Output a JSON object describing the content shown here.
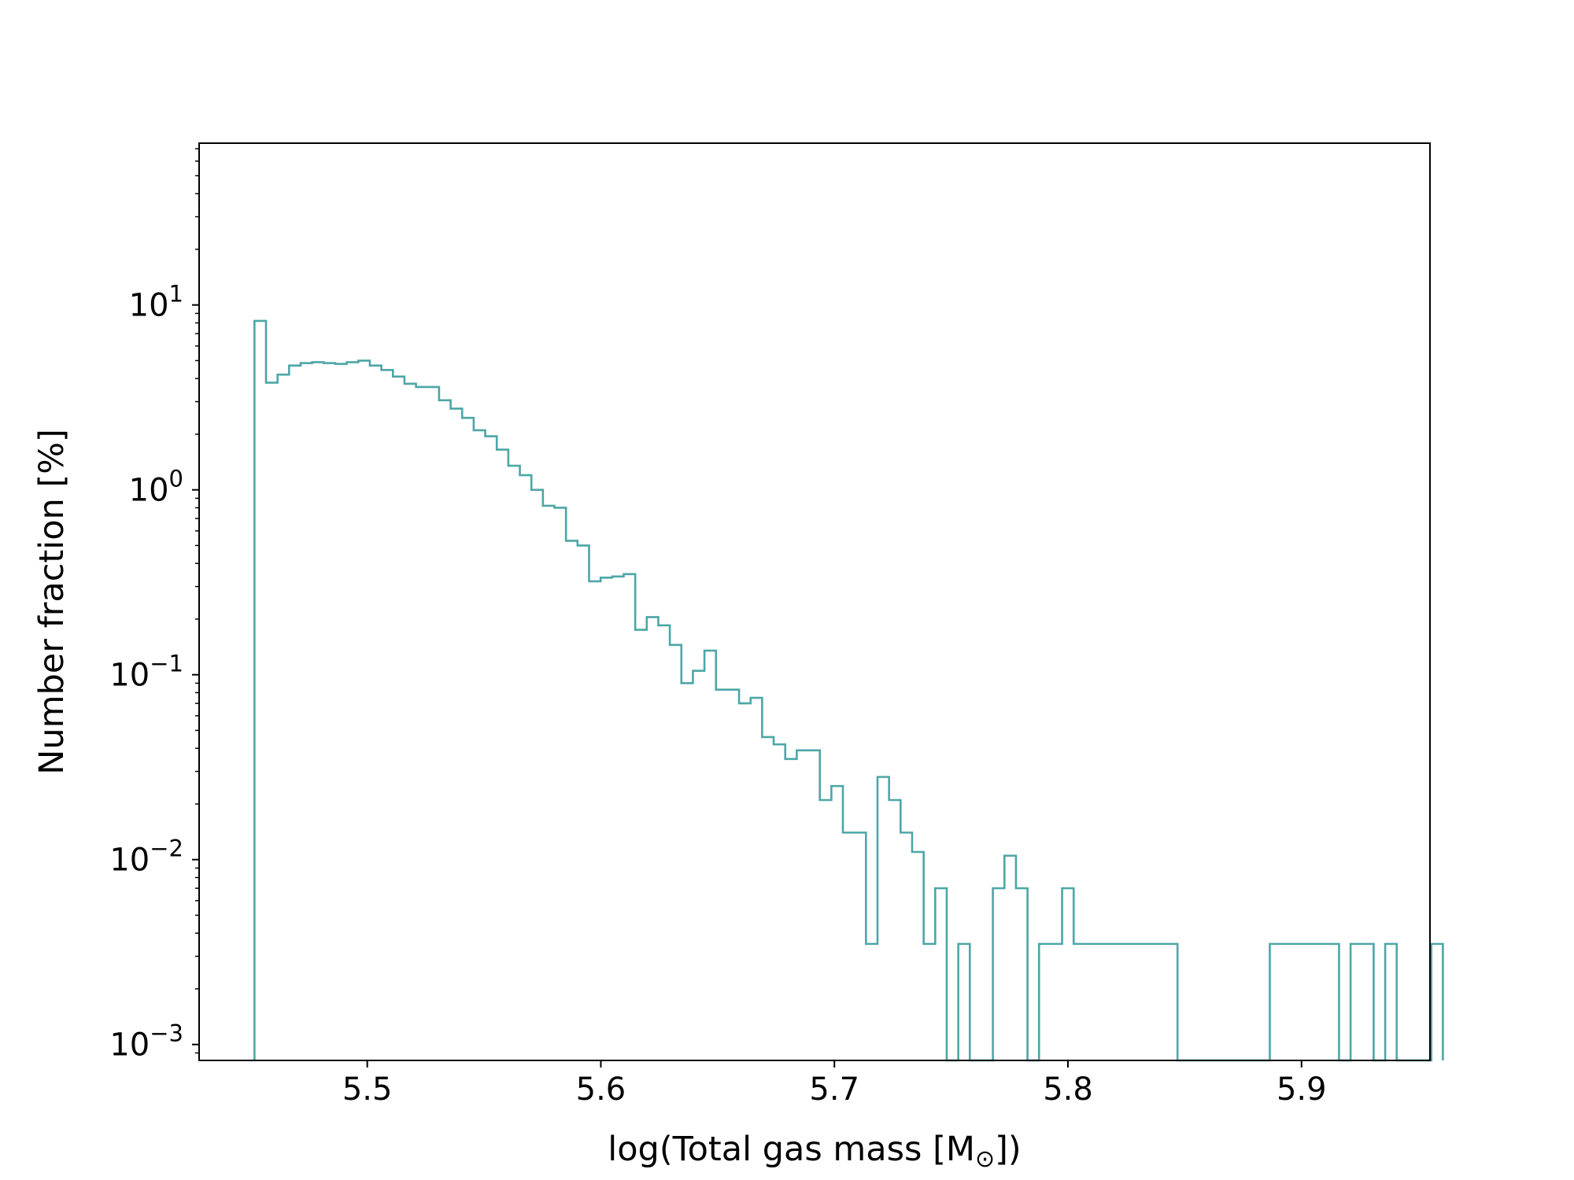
{
  "chart_data": {
    "type": "histogram",
    "style": "step",
    "title": "",
    "xlabel": "log(Total gas mass [M_sun])",
    "ylabel": "Number fraction [%]",
    "x_scale": "linear",
    "y_scale": "log",
    "xlim": [
      5.428,
      5.955
    ],
    "ylim": [
      0.00082,
      75
    ],
    "x_ticks": [
      5.5,
      5.6,
      5.7,
      5.8,
      5.9
    ],
    "x_tick_labels": [
      "5.5",
      "5.6",
      "5.7",
      "5.8",
      "5.9"
    ],
    "y_ticks": [
      0.001,
      0.01,
      0.1,
      1,
      10
    ],
    "y_tick_bases": [
      "10",
      "10",
      "10",
      "10",
      "10"
    ],
    "y_tick_exponents": [
      "−3",
      "−2",
      "−1",
      "0",
      "1"
    ],
    "grid": false,
    "legend": "none",
    "line_color": "#4da6a6",
    "series": [
      {
        "bin_start": 5.4517,
        "bin_width": 0.00494,
        "values": [
          8.2,
          3.8,
          4.2,
          4.7,
          4.85,
          4.9,
          4.85,
          4.8,
          4.9,
          5.0,
          4.7,
          4.45,
          4.1,
          3.75,
          3.6,
          3.6,
          3.05,
          2.75,
          2.45,
          2.1,
          1.95,
          1.65,
          1.35,
          1.2,
          1.0,
          0.82,
          0.8,
          0.53,
          0.5,
          0.32,
          0.335,
          0.34,
          0.35,
          0.175,
          0.205,
          0.185,
          0.145,
          0.09,
          0.105,
          0.135,
          0.083,
          0.083,
          0.07,
          0.075,
          0.046,
          0.042,
          0.035,
          0.039,
          0.039,
          0.021,
          0.025,
          0.014,
          0.014,
          0.0035,
          0.028,
          0.021,
          0.014,
          0.011,
          0.0035,
          0.007,
          0,
          0.0035,
          0,
          0,
          0.007,
          0.0105,
          0.007,
          0,
          0.0035,
          0.0035,
          0.007,
          0.0035,
          0.0035,
          0.0035,
          0.0035,
          0.0035,
          0.0035,
          0.0035,
          0.0035,
          0.0035,
          0,
          0,
          0,
          0,
          0,
          0,
          0,
          0,
          0.0035,
          0.0035,
          0.0035,
          0.0035,
          0.0035,
          0.0035,
          0,
          0.0035,
          0.0035,
          0,
          0.0035,
          0,
          0,
          0,
          0.0035
        ]
      }
    ]
  }
}
